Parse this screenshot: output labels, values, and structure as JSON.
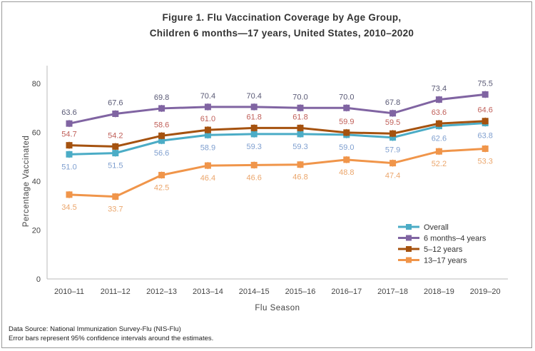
{
  "chart_data": {
    "type": "line",
    "title": "Figure 1. Flu Vaccination Coverage by Age Group,",
    "subtitle": "Children 6 months—17 years, United States, 2010–2020",
    "xlabel": "Flu Season",
    "ylabel": "Percentage Vaccinated",
    "ylim": [
      0,
      80
    ],
    "yticks": [
      "0",
      "20",
      "40",
      "60",
      "80"
    ],
    "categories": [
      "2010–11",
      "2011–12",
      "2012–13",
      "2013–14",
      "2014–15",
      "2015–16",
      "2016–17",
      "2017–18",
      "2018–19",
      "2019–20"
    ],
    "grid": false,
    "legend_position": "bottom-right",
    "series": [
      {
        "name": "Overall",
        "color": "#4bacc6",
        "label_color": "#7f9fcf",
        "label_pos": "below",
        "values": [
          51.0,
          51.5,
          56.6,
          58.9,
          59.3,
          59.3,
          59.0,
          57.9,
          62.6,
          63.8
        ],
        "labels": [
          "51.0",
          "51.5",
          "56.6",
          "58.9",
          "59.3",
          "59.3",
          "59.0",
          "57.9",
          "62.6",
          "63.8"
        ]
      },
      {
        "name": "6 months–4 years",
        "color": "#8064a2",
        "label_color": "#595975",
        "label_pos": "above",
        "values": [
          63.6,
          67.6,
          69.8,
          70.4,
          70.4,
          70.0,
          70.0,
          67.8,
          73.4,
          75.5
        ],
        "labels": [
          "63.6",
          "67.6",
          "69.8",
          "70.4",
          "70.4",
          "70.0",
          "70.0",
          "67.8",
          "73.4",
          "75.5"
        ]
      },
      {
        "name": "5–12 years",
        "color": "#a5520f",
        "label_color": "#c0605a",
        "label_pos": "above",
        "values": [
          54.7,
          54.2,
          58.6,
          61.0,
          61.8,
          61.8,
          59.9,
          59.5,
          63.6,
          64.6
        ],
        "labels": [
          "54.7",
          "54.2",
          "58.6",
          "61.0",
          "61.8",
          "61.8",
          "59.9",
          "59.5",
          "63.6",
          "64.6"
        ]
      },
      {
        "name": "13–17 years",
        "color": "#f0954a",
        "label_color": "#eba66c",
        "label_pos": "below",
        "values": [
          34.5,
          33.7,
          42.5,
          46.4,
          46.6,
          46.8,
          48.8,
          47.4,
          52.2,
          53.3
        ],
        "labels": [
          "34.5",
          "33.7",
          "42.5",
          "46.4",
          "46.6",
          "46.8",
          "48.8",
          "47.4",
          "52.2",
          "53.3"
        ]
      }
    ]
  },
  "source": {
    "line1": "Data Source: National Immunization Survey-Flu (NIS-Flu)",
    "line2": "Error bars represent 95% confidence intervals around the estimates."
  }
}
